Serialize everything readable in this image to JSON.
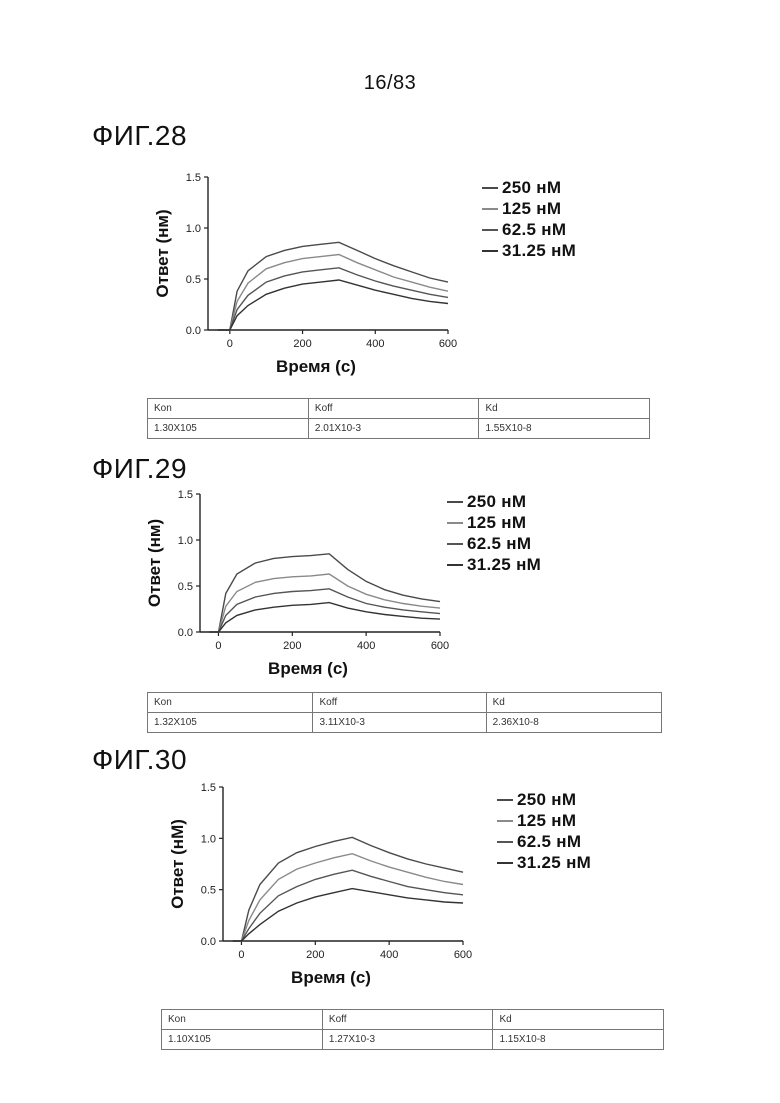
{
  "page_number": "16/83",
  "figures": [
    {
      "label": "ФИГ.28",
      "table": {
        "headers": [
          "Kon",
          "Koff",
          "Kd"
        ],
        "values": [
          "1.30X105",
          "2.01X10-3",
          "1.55X10-8"
        ]
      }
    },
    {
      "label": "ФИГ.29",
      "table": {
        "headers": [
          "Kon",
          "Koff",
          "Kd"
        ],
        "values": [
          "1.32X105",
          "3.11X10-3",
          "2.36X10-8"
        ]
      }
    },
    {
      "label": "ФИГ.30",
      "table": {
        "headers": [
          "Kon",
          "Koff",
          "Kd"
        ],
        "values": [
          "1.10X105",
          "1.27X10-3",
          "1.15X10-8"
        ]
      }
    }
  ],
  "chart_data": [
    {
      "type": "line",
      "xlabel": "Время (с)",
      "ylabel": "Ответ (нм)",
      "xlim": [
        -60,
        600
      ],
      "ylim": [
        0,
        1.5
      ],
      "xticks": [
        "0",
        "200",
        "400",
        "600"
      ],
      "yticks": [
        "0.0",
        "0.5",
        "1.0",
        "1.5"
      ],
      "x": [
        0,
        20,
        50,
        100,
        150,
        200,
        250,
        300,
        350,
        400,
        450,
        500,
        550,
        600
      ],
      "series": [
        {
          "name": "250 нМ",
          "color": "#4a4a4a",
          "values": [
            0.0,
            0.38,
            0.58,
            0.72,
            0.78,
            0.82,
            0.84,
            0.86,
            0.78,
            0.7,
            0.63,
            0.57,
            0.51,
            0.47
          ]
        },
        {
          "name": "125 нМ",
          "color": "#8a8a8a",
          "values": [
            0.0,
            0.28,
            0.46,
            0.6,
            0.66,
            0.7,
            0.72,
            0.74,
            0.66,
            0.59,
            0.52,
            0.47,
            0.42,
            0.38
          ]
        },
        {
          "name": "62.5 нМ",
          "color": "#555555",
          "values": [
            0.0,
            0.2,
            0.34,
            0.47,
            0.53,
            0.57,
            0.59,
            0.61,
            0.54,
            0.48,
            0.43,
            0.39,
            0.35,
            0.32
          ]
        },
        {
          "name": "31.25 нМ",
          "color": "#333333",
          "values": [
            0.0,
            0.14,
            0.24,
            0.35,
            0.41,
            0.45,
            0.47,
            0.49,
            0.44,
            0.39,
            0.35,
            0.31,
            0.28,
            0.26
          ]
        }
      ]
    },
    {
      "type": "line",
      "xlabel": "Время (с)",
      "ylabel": "Ответ (нм)",
      "xlim": [
        -50,
        600
      ],
      "ylim": [
        0,
        1.5
      ],
      "xticks": [
        "0",
        "200",
        "400",
        "600"
      ],
      "yticks": [
        "0.0",
        "0.5",
        "1.0",
        "1.5"
      ],
      "x": [
        0,
        20,
        50,
        100,
        150,
        200,
        250,
        300,
        350,
        400,
        450,
        500,
        550,
        600
      ],
      "series": [
        {
          "name": "250 нМ",
          "color": "#4a4a4a",
          "values": [
            0.0,
            0.42,
            0.63,
            0.75,
            0.8,
            0.82,
            0.83,
            0.85,
            0.68,
            0.55,
            0.46,
            0.4,
            0.36,
            0.33
          ]
        },
        {
          "name": "125 нМ",
          "color": "#8a8a8a",
          "values": [
            0.0,
            0.28,
            0.44,
            0.54,
            0.58,
            0.6,
            0.61,
            0.63,
            0.5,
            0.41,
            0.35,
            0.31,
            0.28,
            0.26
          ]
        },
        {
          "name": "62.5 нМ",
          "color": "#555555",
          "values": [
            0.0,
            0.18,
            0.3,
            0.38,
            0.42,
            0.44,
            0.45,
            0.47,
            0.38,
            0.31,
            0.27,
            0.24,
            0.22,
            0.2
          ]
        },
        {
          "name": "31.25 нМ",
          "color": "#333333",
          "values": [
            0.0,
            0.1,
            0.18,
            0.24,
            0.27,
            0.29,
            0.3,
            0.32,
            0.26,
            0.22,
            0.19,
            0.17,
            0.15,
            0.14
          ]
        }
      ]
    },
    {
      "type": "line",
      "xlabel": "Время (с)",
      "ylabel": "Ответ (нМ)",
      "xlim": [
        -50,
        600
      ],
      "ylim": [
        0,
        1.5
      ],
      "xticks": [
        "0",
        "200",
        "400",
        "600"
      ],
      "yticks": [
        "0.0",
        "0.5",
        "1.0",
        "1.5"
      ],
      "x": [
        0,
        20,
        50,
        100,
        150,
        200,
        250,
        300,
        350,
        400,
        450,
        500,
        550,
        600
      ],
      "series": [
        {
          "name": "250 нМ",
          "color": "#4a4a4a",
          "values": [
            0.0,
            0.3,
            0.55,
            0.76,
            0.86,
            0.92,
            0.97,
            1.01,
            0.93,
            0.86,
            0.8,
            0.75,
            0.71,
            0.67
          ]
        },
        {
          "name": "125 нМ",
          "color": "#8a8a8a",
          "values": [
            0.0,
            0.2,
            0.4,
            0.6,
            0.7,
            0.76,
            0.81,
            0.85,
            0.78,
            0.72,
            0.67,
            0.62,
            0.58,
            0.55
          ]
        },
        {
          "name": "62.5 нМ",
          "color": "#555555",
          "values": [
            0.0,
            0.12,
            0.27,
            0.44,
            0.53,
            0.6,
            0.65,
            0.69,
            0.63,
            0.58,
            0.53,
            0.5,
            0.47,
            0.45
          ]
        },
        {
          "name": "31.25 нМ",
          "color": "#333333",
          "values": [
            0.0,
            0.07,
            0.16,
            0.29,
            0.37,
            0.43,
            0.47,
            0.51,
            0.48,
            0.45,
            0.42,
            0.4,
            0.38,
            0.37
          ]
        }
      ]
    }
  ]
}
